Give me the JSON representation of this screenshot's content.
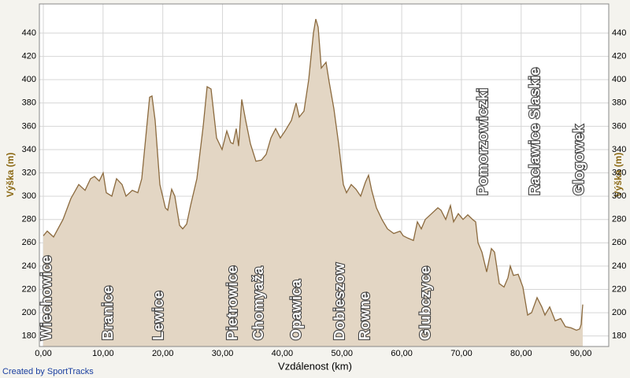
{
  "chart_data": {
    "type": "area",
    "x_label": "Vzdálenost (km)",
    "y_label": "Výška (m)",
    "fill_color": "#e3d6c4",
    "line_color": "#8b6a3e",
    "grid": true,
    "xlim": [
      -0.66,
      94.66
    ],
    "xticks": [
      {
        "value": 0,
        "label": "0,00"
      },
      {
        "value": 10,
        "label": "10,00"
      },
      {
        "value": 20,
        "label": "20,00"
      },
      {
        "value": 30,
        "label": "30,00"
      },
      {
        "value": 40,
        "label": "40,00"
      },
      {
        "value": 50,
        "label": "50,00"
      },
      {
        "value": 60,
        "label": "60,00"
      },
      {
        "value": 70,
        "label": "70,00"
      },
      {
        "value": 80,
        "label": "80,00"
      },
      {
        "value": 90,
        "label": "90,00"
      }
    ],
    "ylim": [
      171,
      465
    ],
    "yticks": [
      180,
      200,
      220,
      240,
      260,
      280,
      300,
      320,
      340,
      360,
      380,
      400,
      420,
      440
    ],
    "x": [
      0,
      0.66,
      1.71,
      3.3,
      4.61,
      5.93,
      6.99,
      7.91,
      8.57,
      9.36,
      10.02,
      10.55,
      11.47,
      12.26,
      13.18,
      13.84,
      14.9,
      15.82,
      16.48,
      17.14,
      17.8,
      18.19,
      18.72,
      19.51,
      20.43,
      20.83,
      21.49,
      22.02,
      22.81,
      23.34,
      23.99,
      24.65,
      25.71,
      26.76,
      27.42,
      28.08,
      29.0,
      29.93,
      30.72,
      31.38,
      31.77,
      32.3,
      32.7,
      33.22,
      33.88,
      34.67,
      35.6,
      36.52,
      37.31,
      38.1,
      38.89,
      39.68,
      40.47,
      41.53,
      42.32,
      42.85,
      43.64,
      44.43,
      45.22,
      45.62,
      46.01,
      46.54,
      47.33,
      47.86,
      48.65,
      49.44,
      50.23,
      50.76,
      51.55,
      52.34,
      53.13,
      53.92,
      54.45,
      54.98,
      55.77,
      56.69,
      57.61,
      58.67,
      59.72,
      60.25,
      61.04,
      61.96,
      62.62,
      63.28,
      63.94,
      65.0,
      66.05,
      66.58,
      67.37,
      68.16,
      68.69,
      69.48,
      70.27,
      71.06,
      71.87,
      72.38,
      72.78,
      73.44,
      74.23,
      75.02,
      75.54,
      76.33,
      77.13,
      77.78,
      78.18,
      78.71,
      79.5,
      80.29,
      81.08,
      81.74,
      82.66,
      83.45,
      83.98,
      84.77,
      85.7,
      86.62,
      87.41,
      88.33,
      89.26,
      89.78,
      90.05,
      90.31
    ],
    "values": [
      266,
      270,
      265,
      280,
      298,
      310,
      305,
      315,
      317,
      313,
      320,
      303,
      300,
      315,
      310,
      300,
      305,
      303,
      315,
      350,
      385,
      386,
      365,
      310,
      290,
      288,
      306,
      300,
      275,
      272,
      276,
      292,
      315,
      360,
      394,
      392,
      350,
      340,
      356,
      346,
      345,
      358,
      343,
      383,
      365,
      345,
      330,
      331,
      336,
      350,
      358,
      350,
      356,
      365,
      380,
      368,
      373,
      400,
      440,
      452,
      445,
      410,
      415,
      398,
      375,
      345,
      310,
      303,
      310,
      306,
      300,
      312,
      318,
      305,
      290,
      280,
      272,
      268,
      270,
      266,
      264,
      262,
      278,
      272,
      280,
      285,
      290,
      288,
      280,
      292,
      278,
      285,
      280,
      284,
      280,
      278,
      260,
      252,
      235,
      255,
      252,
      225,
      222,
      230,
      240,
      232,
      233,
      222,
      198,
      200,
      213,
      205,
      198,
      205,
      193,
      195,
      188,
      187,
      185,
      186,
      190,
      207
    ],
    "annotations": [
      {
        "text": "Wiechowice",
        "x": 0.66
      },
      {
        "text": "Branice",
        "x": 10.94
      },
      {
        "text": "Lewice",
        "x": 19.38
      },
      {
        "text": "Pietrowice",
        "x": 31.77
      },
      {
        "text": "Chomyaža",
        "x": 36.12
      },
      {
        "text": "Opawica",
        "x": 42.45
      },
      {
        "text": "Dobieszow",
        "x": 49.7
      },
      {
        "text": "Rowne",
        "x": 53.92
      },
      {
        "text": "Glubczyce",
        "x": 64.07
      },
      {
        "text": "Pomorzowiczki",
        "x": 73.7
      },
      {
        "text": "Raclawice Slaskie",
        "x": 82.4
      },
      {
        "text": "Glogowek",
        "x": 89.78
      }
    ]
  },
  "credit": "Created by SportTracks"
}
